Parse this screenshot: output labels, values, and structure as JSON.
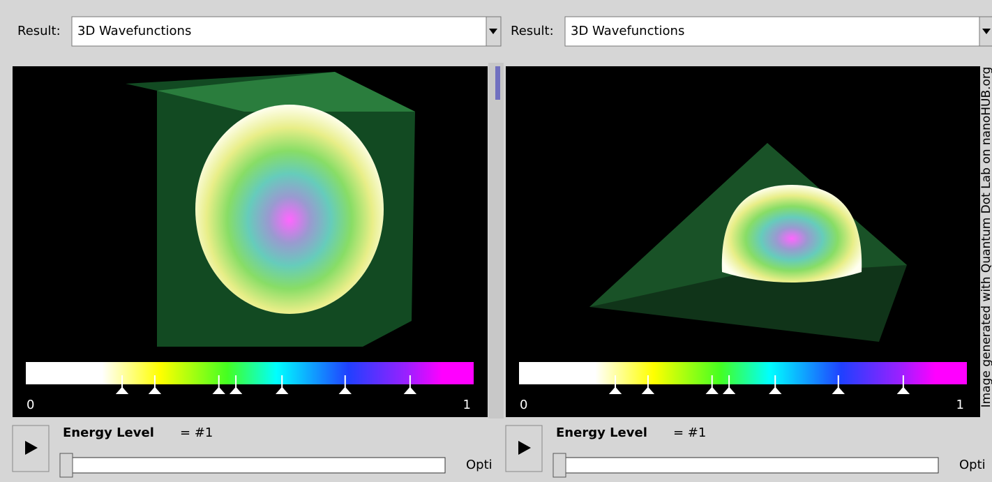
{
  "panels": [
    {
      "result_label": "Result:",
      "result_value": "3D Wavefunctions",
      "colorbar": {
        "min_label": "0",
        "max_label": "1",
        "markers": [
          0.215,
          0.288,
          0.431,
          0.469,
          0.572,
          0.713,
          0.858
        ]
      },
      "control_label": "Energy Level",
      "control_value": "= #1",
      "option_label": "Opti"
    },
    {
      "result_label": "Result:",
      "result_value": "3D Wavefunctions",
      "colorbar": {
        "min_label": "0",
        "max_label": "1",
        "markers": [
          0.215,
          0.288,
          0.431,
          0.469,
          0.572,
          0.713,
          0.858
        ]
      },
      "control_label": "Energy Level",
      "control_value": "= #1",
      "option_label": "Opti"
    }
  ],
  "watermark": "Image generated with Quantum Dot Lab on nanoHUB.org"
}
